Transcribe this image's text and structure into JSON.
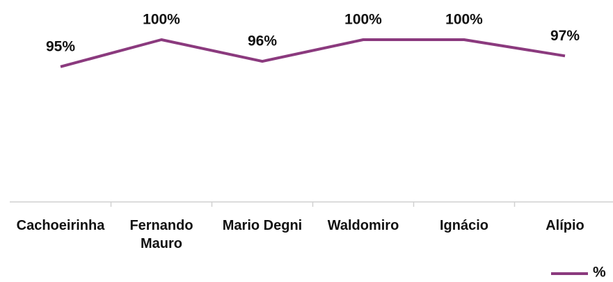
{
  "chart_data": {
    "type": "line",
    "categories": [
      "Cachoeirinha",
      "Fernando Mauro",
      "Mario Degni",
      "Waldomiro",
      "Ignácio",
      "Alípio"
    ],
    "series": [
      {
        "name": "%",
        "color": "#8b3a7e",
        "values": [
          95,
          100,
          96,
          100,
          100,
          97
        ],
        "value_labels": [
          "95%",
          "100%",
          "96%",
          "100%",
          "100%",
          "97%"
        ]
      }
    ],
    "ylim": [
      70,
      100
    ],
    "legend": "bottom-right"
  }
}
